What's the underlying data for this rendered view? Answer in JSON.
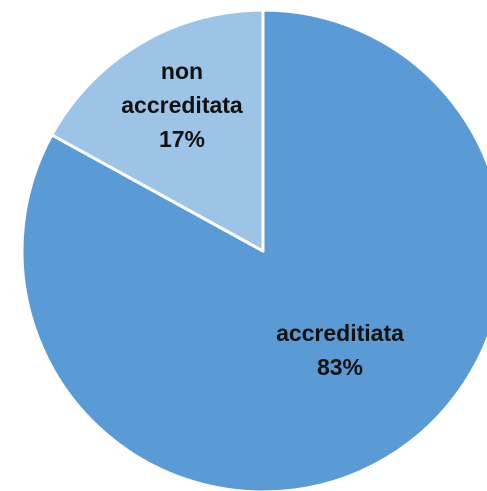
{
  "chart_data": {
    "type": "pie",
    "categories": [
      "accreditiata",
      "non accreditata"
    ],
    "values": [
      83,
      17
    ],
    "value_labels": [
      "83%",
      "17%"
    ],
    "colors": [
      "#5b9bd5",
      "#9dc3e6"
    ],
    "start_angle": 0,
    "direction": "clockwise"
  }
}
